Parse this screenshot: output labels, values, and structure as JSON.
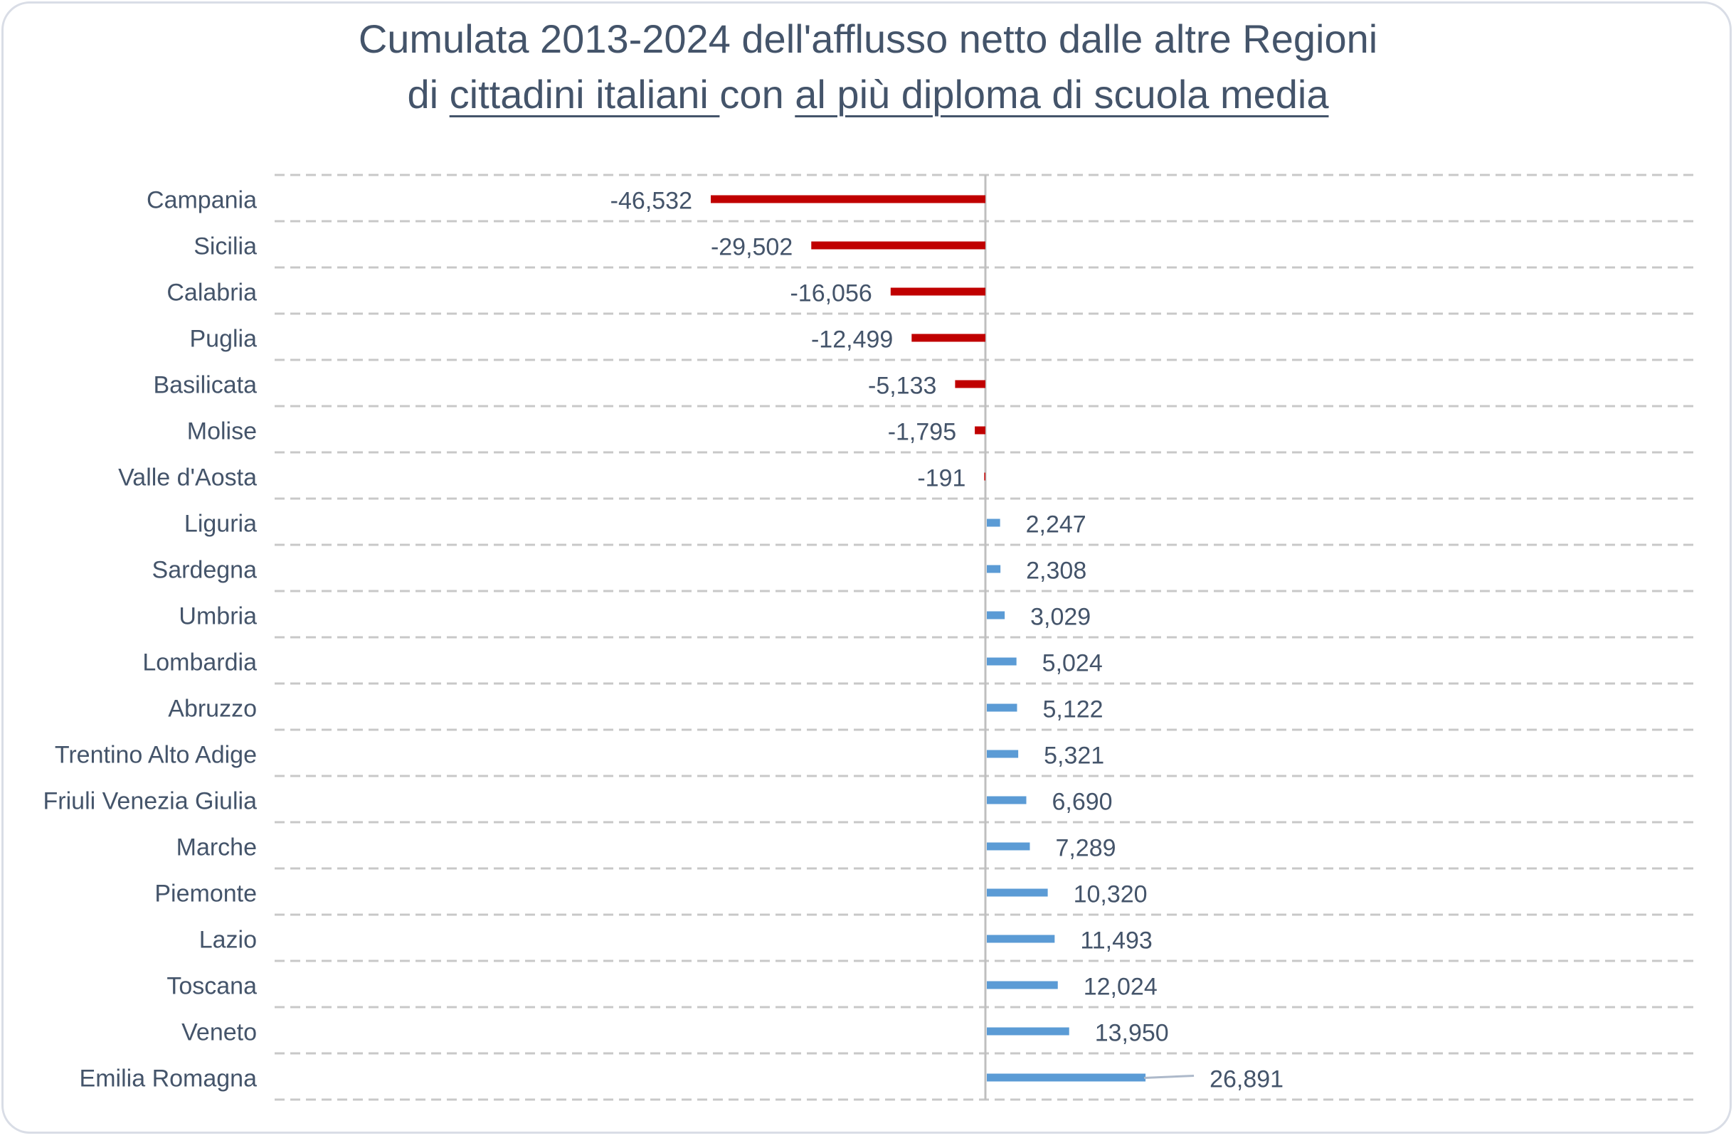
{
  "chart_data": {
    "type": "bar",
    "orientation": "horizontal",
    "title_line1": "Cumulata 2013-2024 dell'afflusso netto dalle altre Regioni",
    "title_line2": {
      "prefix": "di ",
      "underlined1": "cittadini italiani ",
      "middle": "con ",
      "underlined2": "al più diploma di scuola media"
    },
    "categories": [
      "Campania",
      "Sicilia",
      "Calabria",
      "Puglia",
      "Basilicata",
      "Molise",
      "Valle d'Aosta",
      "Liguria",
      "Sardegna",
      "Umbria",
      "Lombardia",
      "Abruzzo",
      "Trentino Alto Adige",
      "Friuli Venezia Giulia",
      "Marche",
      "Piemonte",
      "Lazio",
      "Toscana",
      "Veneto",
      "Emilia Romagna"
    ],
    "values": [
      -46532,
      -29502,
      -16056,
      -12499,
      -5133,
      -1795,
      -191,
      2247,
      2308,
      3029,
      5024,
      5122,
      5321,
      6690,
      7289,
      10320,
      11493,
      12024,
      13950,
      26891
    ],
    "labels": [
      "-46,532",
      "-29,502",
      "-16,056",
      "-12,499",
      "-5,133",
      "-1,795",
      "-191",
      "2,247",
      "2,308",
      "3,029",
      "5,024",
      "5,122",
      "5,321",
      "6,690",
      "7,289",
      "10,320",
      "11,493",
      "12,024",
      "13,950",
      "26,891"
    ],
    "xlim": [
      -48000,
      78000
    ],
    "grid": "horizontal dashed",
    "legend": "none",
    "colors": {
      "negative": "#c00000",
      "positive": "#5b9bd5",
      "text": "#44546a",
      "grid": "#c8c8c8"
    }
  }
}
